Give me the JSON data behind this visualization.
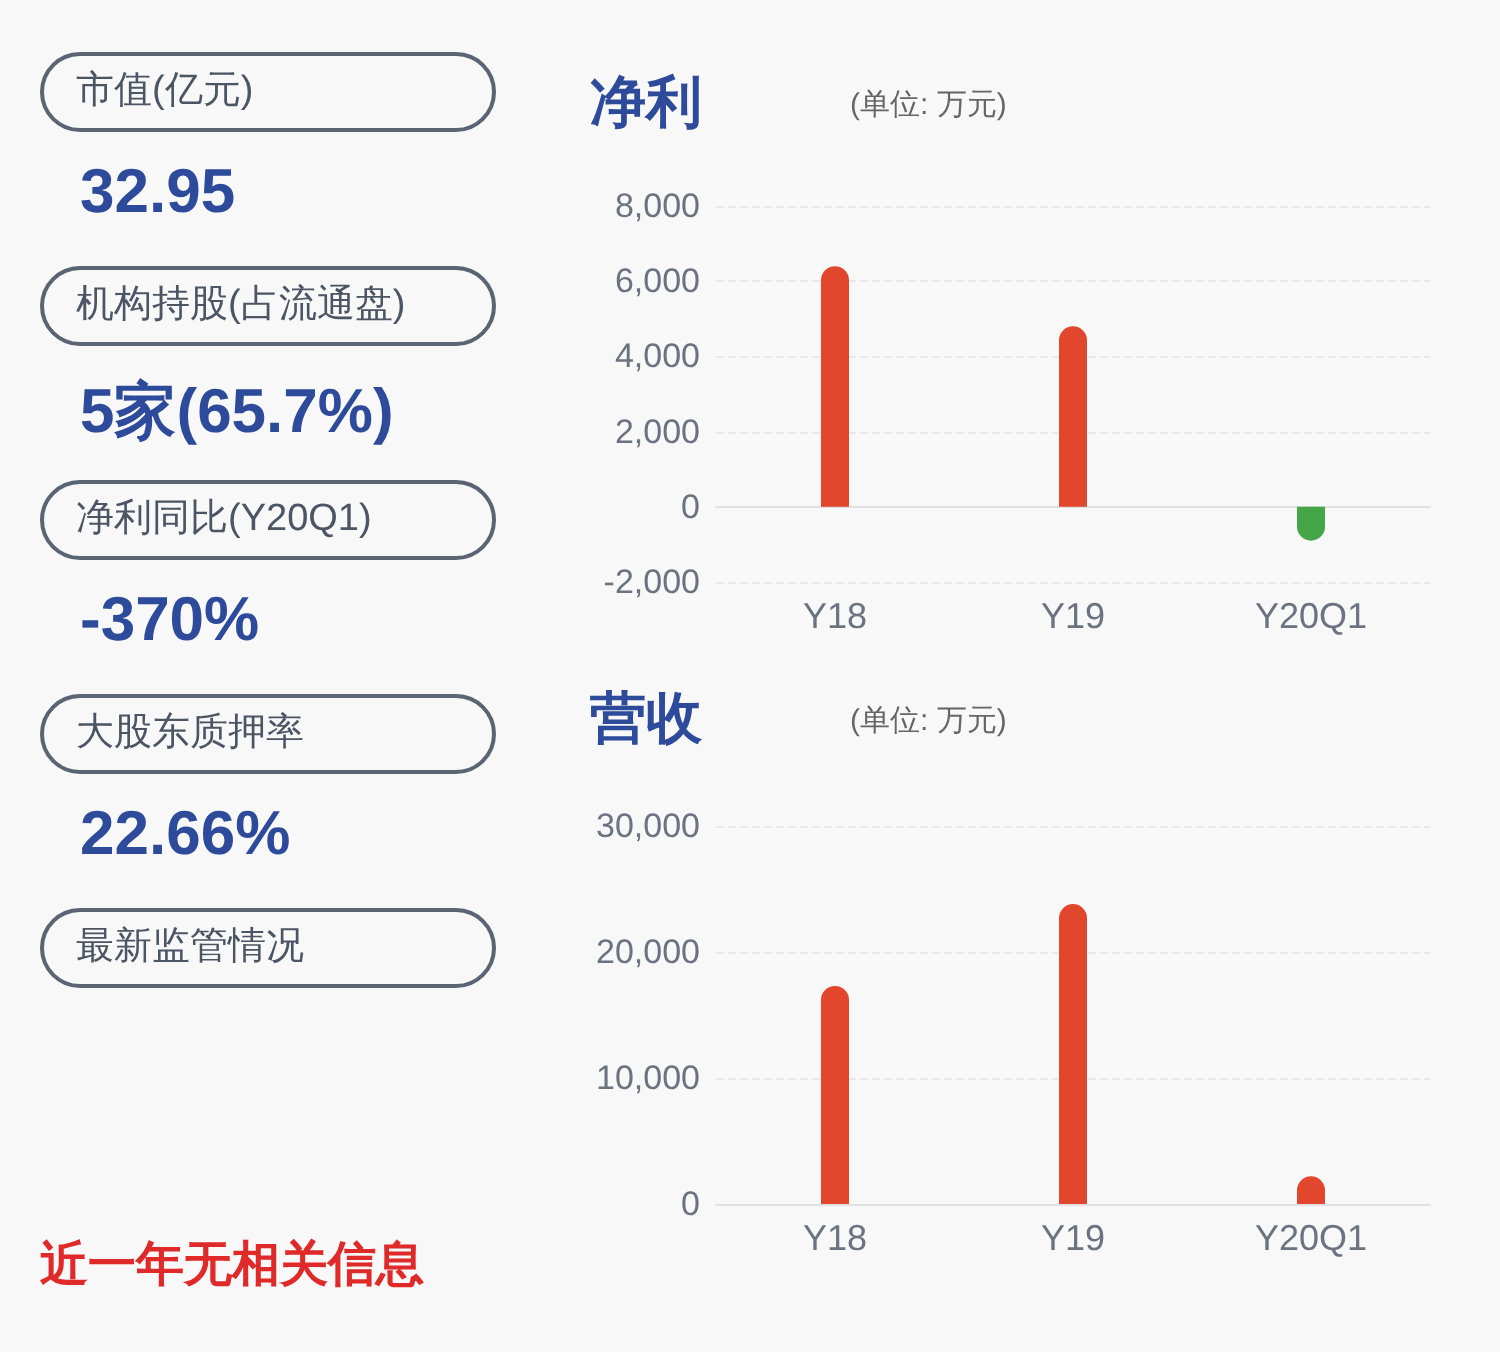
{
  "chart_data": [
    {
      "type": "other",
      "annotations": [
        "市值(亿元)",
        "32.95",
        "机构持股(占流通盘)",
        "5家(65.7%)",
        "净利同比(Y20Q1)",
        "-370%",
        "大股东质押率",
        "22.66%",
        "最新监管情况",
        "近一年无相关信息"
      ]
    },
    {
      "type": "bar",
      "title": "净利",
      "subtitle": "(单位: 万元)",
      "categories": [
        "Y18",
        "Y19",
        "Y20Q1"
      ],
      "values": [
        6400,
        4800,
        -900
      ],
      "colors": [
        "#e2462c",
        "#e2462c",
        "#44a648"
      ],
      "ylim": [
        -2000,
        8000
      ],
      "yticks": [
        {
          "value": -2000,
          "label": "-2,000"
        },
        0,
        {
          "value": 2000,
          "label": "2,000"
        },
        {
          "value": 4000,
          "label": "4,000"
        },
        {
          "value": 6000,
          "label": "6,000"
        },
        {
          "value": 8000,
          "label": "8,000"
        }
      ],
      "grid": "y"
    },
    {
      "type": "bar",
      "title": "营收",
      "subtitle": "(单位: 万元)",
      "categories": [
        "Y18",
        "Y19",
        "Y20Q1"
      ],
      "values": [
        17300,
        23800,
        2200
      ],
      "colors": [
        "#e2462c",
        "#e2462c",
        "#e2462c"
      ],
      "ylim": [
        0,
        30000
      ],
      "yticks": [
        0,
        {
          "value": 10000,
          "label": "10,000"
        },
        {
          "value": 20000,
          "label": "20,000"
        },
        {
          "value": 30000,
          "label": "30,000"
        }
      ],
      "grid": "y"
    }
  ]
}
